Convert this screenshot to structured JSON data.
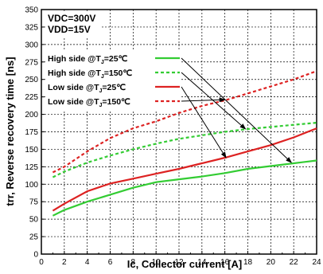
{
  "chart_data": {
    "type": "line",
    "xlabel": "Ic, Collector current [A]",
    "ylabel": "trr, Reverse recovery time [ns]",
    "xlim": [
      0,
      24
    ],
    "ylim": [
      0,
      350
    ],
    "xticks": [
      "0",
      "2",
      "4",
      "6",
      "8",
      "10",
      "12",
      "14",
      "16",
      "18",
      "20",
      "22",
      "24"
    ],
    "yticks": [
      "0",
      "25",
      "50",
      "75",
      "100",
      "125",
      "150",
      "175",
      "200",
      "225",
      "250",
      "275",
      "300",
      "325",
      "350"
    ],
    "grid": true,
    "conditions": [
      "VDC=300V",
      "VDD=15V"
    ],
    "legend_position": "top-left",
    "series": [
      {
        "name": "High side @TJ=25℃",
        "label_prefix": "High side @T",
        "label_sub": "J",
        "label_suffix": "=25℃",
        "color": "#33cc33",
        "dash": "solid",
        "x": [
          1,
          2,
          4,
          6,
          8,
          10,
          12,
          14,
          16,
          18,
          20,
          22,
          24
        ],
        "y": [
          55,
          63,
          75,
          85,
          95,
          103,
          107,
          111,
          116,
          122,
          126,
          130,
          134
        ]
      },
      {
        "name": "High side @TJ=150℃",
        "label_prefix": "High side @T",
        "label_sub": "J",
        "label_suffix": "=150℃",
        "color": "#33cc33",
        "dash": "dashed",
        "x": [
          1,
          2,
          4,
          6,
          8,
          10,
          12,
          14,
          16,
          18,
          20,
          22,
          24
        ],
        "y": [
          110,
          118,
          131,
          141,
          150,
          158,
          165,
          170,
          175,
          179,
          182,
          185,
          188
        ]
      },
      {
        "name": "Low side @TJ=25℃",
        "label_prefix": "Low side @T",
        "label_sub": "J",
        "label_suffix": "=25℃",
        "color": "#dd2222",
        "dash": "solid",
        "x": [
          1,
          2,
          4,
          6,
          8,
          10,
          12,
          14,
          16,
          18,
          20,
          22,
          24
        ],
        "y": [
          62,
          72,
          90,
          101,
          108,
          115,
          122,
          130,
          138,
          147,
          156,
          167,
          180
        ]
      },
      {
        "name": "Low side @TJ=150℃",
        "label_prefix": "Low side @T",
        "label_sub": "J",
        "label_suffix": "=150℃",
        "color": "#dd2222",
        "dash": "dashed",
        "x": [
          1,
          2,
          4,
          6,
          8,
          10,
          12,
          14,
          16,
          18,
          20,
          22,
          24
        ],
        "y": [
          117,
          125,
          147,
          166,
          180,
          190,
          202,
          212,
          220,
          230,
          240,
          250,
          262
        ]
      }
    ],
    "arrows": [
      {
        "series": 0,
        "to_x": 21.8,
        "to_y": 131
      },
      {
        "series": 1,
        "to_x": 17.8,
        "to_y": 179
      },
      {
        "series": 2,
        "to_x": 16.1,
        "to_y": 138
      },
      {
        "series": 3,
        "to_x": 16.0,
        "to_y": 221
      }
    ]
  }
}
